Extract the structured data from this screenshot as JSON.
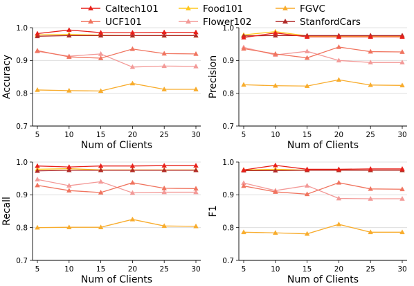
{
  "chart_data": [
    {
      "type": "line",
      "panel": "accuracy",
      "xlabel": "Num of Clients",
      "ylabel": "Accuracy",
      "x": [
        5,
        10,
        15,
        20,
        25,
        30
      ],
      "ylim": [
        0.7,
        1.0
      ],
      "yticks": [
        "0.7",
        "0.8",
        "0.9",
        "1.0"
      ],
      "xticks": [
        "5",
        "10",
        "15",
        "20",
        "25",
        "30"
      ],
      "grid": "y",
      "series": [
        {
          "name": "Caltech101",
          "values": [
            0.982,
            0.993,
            0.985,
            0.985,
            0.986,
            0.986
          ]
        },
        {
          "name": "UCF101",
          "values": [
            0.93,
            0.911,
            0.907,
            0.935,
            0.921,
            0.92
          ]
        },
        {
          "name": "Food101",
          "values": [
            0.978,
            0.98,
            0.977,
            0.976,
            0.976,
            0.976
          ]
        },
        {
          "name": "Flower102",
          "values": [
            0.928,
            0.913,
            0.92,
            0.88,
            0.883,
            0.882
          ]
        },
        {
          "name": "FGVC",
          "values": [
            0.81,
            0.808,
            0.807,
            0.83,
            0.812,
            0.812
          ]
        },
        {
          "name": "StanfordCars",
          "values": [
            0.974,
            0.976,
            0.976,
            0.976,
            0.976,
            0.976
          ]
        }
      ]
    },
    {
      "type": "line",
      "panel": "precision",
      "xlabel": "Num of Clients",
      "ylabel": "Precision",
      "x": [
        5,
        10,
        15,
        20,
        25,
        30
      ],
      "ylim": [
        0.7,
        1.0
      ],
      "yticks": [
        "0.7",
        "0.8",
        "0.9",
        "1.0"
      ],
      "xticks": [
        "5",
        "10",
        "15",
        "20",
        "25",
        "30"
      ],
      "grid": "y",
      "series": [
        {
          "name": "Caltech101",
          "values": [
            0.97,
            0.984,
            0.972,
            0.972,
            0.972,
            0.972
          ]
        },
        {
          "name": "UCF101",
          "values": [
            0.936,
            0.92,
            0.908,
            0.941,
            0.927,
            0.926
          ]
        },
        {
          "name": "Food101",
          "values": [
            0.978,
            0.988,
            0.975,
            0.975,
            0.975,
            0.975
          ]
        },
        {
          "name": "Flower102",
          "values": [
            0.94,
            0.917,
            0.928,
            0.9,
            0.894,
            0.894
          ]
        },
        {
          "name": "FGVC",
          "values": [
            0.826,
            0.823,
            0.822,
            0.841,
            0.825,
            0.824
          ]
        },
        {
          "name": "StanfordCars",
          "values": [
            0.975,
            0.976,
            0.976,
            0.976,
            0.976,
            0.976
          ]
        }
      ]
    },
    {
      "type": "line",
      "panel": "recall",
      "xlabel": "Num of Clients",
      "ylabel": "Recall",
      "x": [
        5,
        10,
        15,
        20,
        25,
        30
      ],
      "ylim": [
        0.7,
        1.0
      ],
      "yticks": [
        "0.7",
        "0.8",
        "0.9",
        "1.0"
      ],
      "xticks": [
        "5",
        "10",
        "15",
        "20",
        "25",
        "30"
      ],
      "grid": "y",
      "series": [
        {
          "name": "Caltech101",
          "values": [
            0.988,
            0.985,
            0.988,
            0.988,
            0.989,
            0.989
          ]
        },
        {
          "name": "UCF101",
          "values": [
            0.929,
            0.913,
            0.907,
            0.937,
            0.92,
            0.919
          ]
        },
        {
          "name": "Food101",
          "values": [
            0.978,
            0.98,
            0.976,
            0.976,
            0.976,
            0.976
          ]
        },
        {
          "name": "Flower102",
          "values": [
            0.947,
            0.928,
            0.94,
            0.906,
            0.908,
            0.908
          ]
        },
        {
          "name": "FGVC",
          "values": [
            0.8,
            0.801,
            0.801,
            0.825,
            0.805,
            0.804
          ]
        },
        {
          "name": "StanfordCars",
          "values": [
            0.973,
            0.975,
            0.975,
            0.975,
            0.975,
            0.975
          ]
        }
      ]
    },
    {
      "type": "line",
      "panel": "f1",
      "xlabel": "Num of Clients",
      "ylabel": "F1",
      "x": [
        5,
        10,
        15,
        20,
        25,
        30
      ],
      "ylim": [
        0.7,
        1.0
      ],
      "yticks": [
        "0.7",
        "0.8",
        "0.9",
        "1.0"
      ],
      "xticks": [
        "5",
        "10",
        "15",
        "20",
        "25",
        "30"
      ],
      "grid": "y",
      "series": [
        {
          "name": "Caltech101",
          "values": [
            0.976,
            0.99,
            0.978,
            0.978,
            0.979,
            0.979
          ]
        },
        {
          "name": "UCF101",
          "values": [
            0.927,
            0.909,
            0.902,
            0.937,
            0.918,
            0.917
          ]
        },
        {
          "name": "Food101",
          "values": [
            0.976,
            0.978,
            0.975,
            0.975,
            0.975,
            0.975
          ]
        },
        {
          "name": "Flower102",
          "values": [
            0.936,
            0.913,
            0.928,
            0.889,
            0.888,
            0.888
          ]
        },
        {
          "name": "FGVC",
          "values": [
            0.786,
            0.784,
            0.781,
            0.81,
            0.786,
            0.786
          ]
        },
        {
          "name": "StanfordCars",
          "values": [
            0.974,
            0.974,
            0.975,
            0.975,
            0.975,
            0.975
          ]
        }
      ]
    }
  ],
  "legend": {
    "placement": "top-center",
    "entries": [
      {
        "name": "Caltech101",
        "color": "#e8201a",
        "alpha": 1.0,
        "marker": "triangle"
      },
      {
        "name": "UCF101",
        "color": "#f0745f",
        "alpha": 1.0,
        "marker": "triangle"
      },
      {
        "name": "Food101",
        "color": "#ffc81e",
        "alpha": 1.0,
        "marker": "triangle"
      },
      {
        "name": "Flower102",
        "color": "#f39a98",
        "alpha": 1.0,
        "marker": "triangle"
      },
      {
        "name": "FGVC",
        "color": "#f8ac2c",
        "alpha": 1.0,
        "marker": "triangle"
      },
      {
        "name": "StanfordCars",
        "color": "#b02a28",
        "alpha": 1.0,
        "marker": "triangle"
      }
    ]
  }
}
